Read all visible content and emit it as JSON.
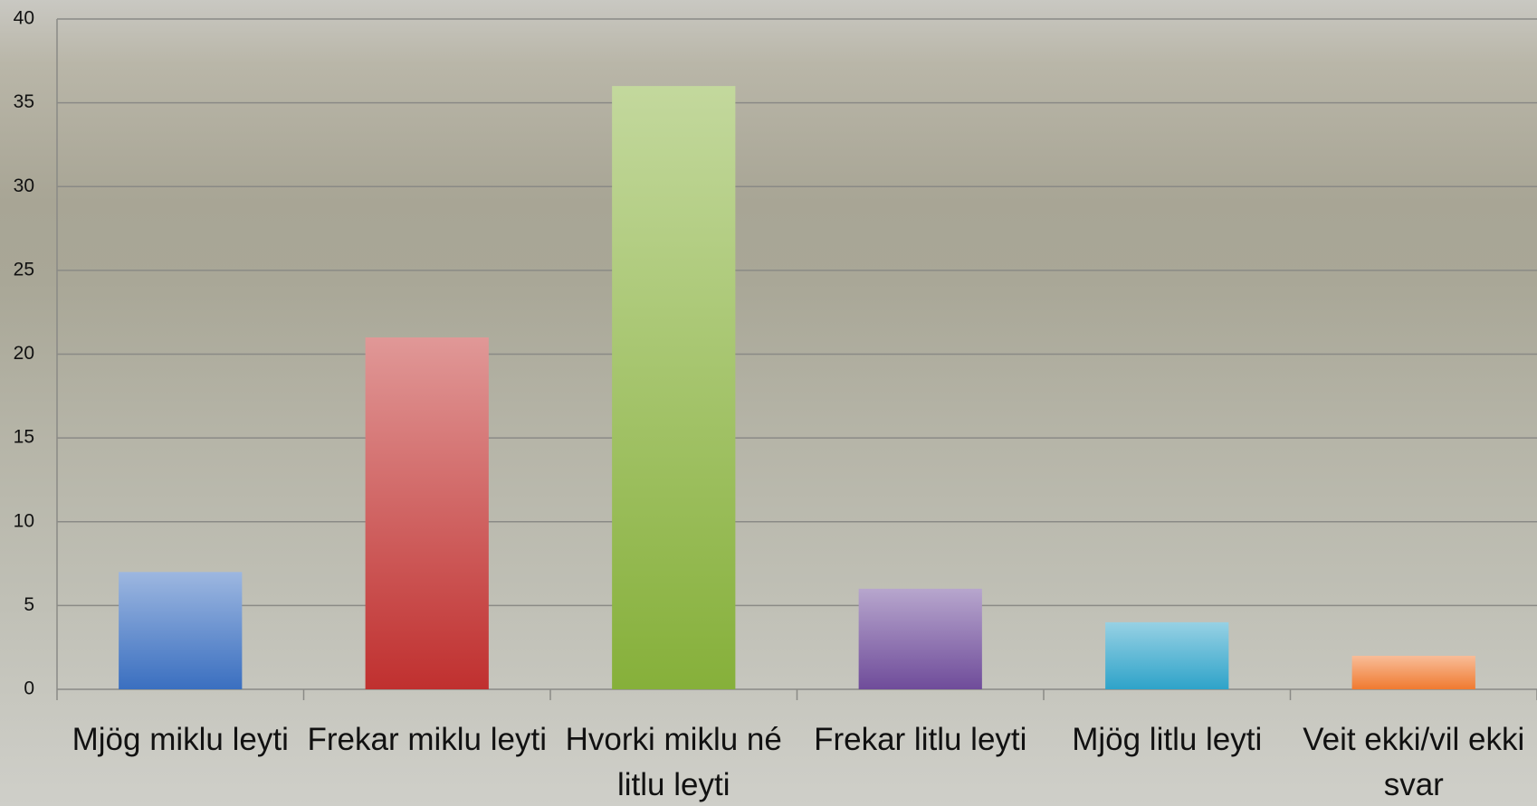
{
  "chart_data": {
    "type": "bar",
    "categories": [
      "Mjög miklu leyti",
      "Frekar miklu leyti",
      "Hvorki miklu né litlu leyti",
      "Frekar litlu leyti",
      "Mjög litlu leyti",
      "Veit ekki/vil ekki svar"
    ],
    "values": [
      7,
      21,
      36,
      6,
      4,
      2
    ],
    "colors": [
      "#3a6fc0",
      "#c0302f",
      "#86b03a",
      "#6f4c9a",
      "#2ea3c9",
      "#f07a30"
    ],
    "ylim": [
      0,
      40
    ],
    "yticks": [
      0,
      5,
      10,
      15,
      20,
      25,
      30,
      35,
      40
    ],
    "grid": true
  }
}
